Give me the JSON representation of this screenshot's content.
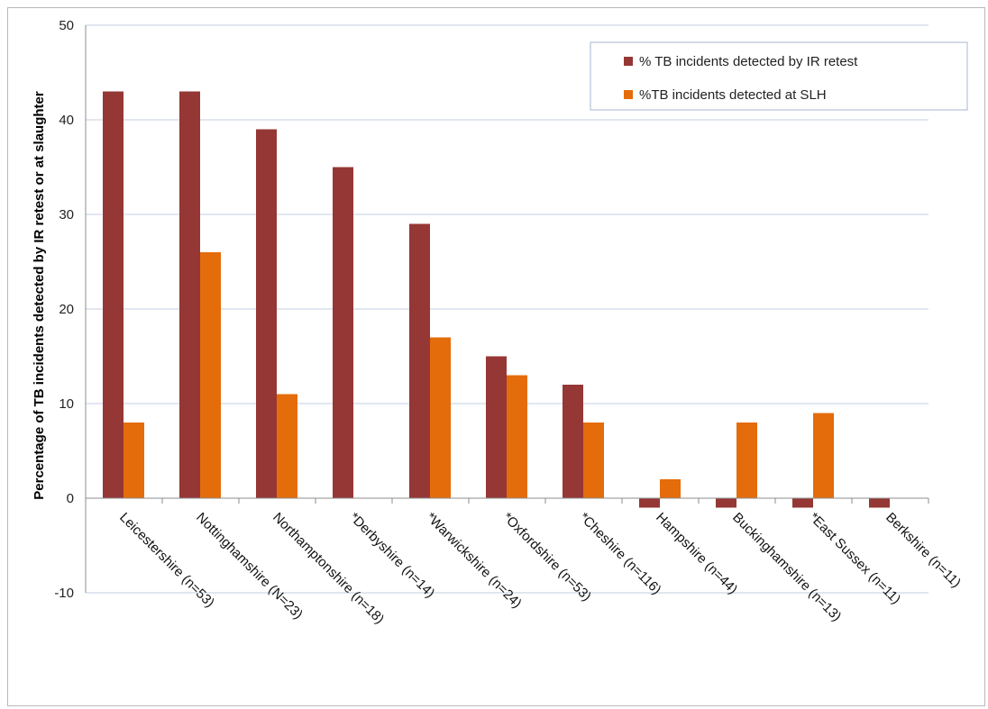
{
  "chart_data": {
    "type": "bar",
    "ylabel": "Percentage of TB incidents detected by IR retest or at slaughter",
    "xlabel": "",
    "ylim": [
      -10,
      50
    ],
    "yticks": [
      -10,
      0,
      10,
      20,
      30,
      40,
      50
    ],
    "grid": "horizontal",
    "legend_position": "top-right",
    "categories": [
      "Leicestershire (n=53)",
      "Nottinghamshire (N=23)",
      "Northamptonshire (n=18)",
      "*Derbyshire (n=14)",
      "*Warwickshire (n=24)",
      "*Oxfordshire (n=53)",
      "*Cheshire (n=116)",
      "Hampshire (n=44)",
      "Buckinghamshire (n=13)",
      "*East Sussex (n=11)",
      "Berkshire (n=11)"
    ],
    "series": [
      {
        "name": "% TB incidents detected by IR retest",
        "color": "#953735",
        "values": [
          43,
          43,
          39,
          35,
          29,
          15,
          12,
          -1,
          -1,
          -1,
          -1
        ]
      },
      {
        "name": "%TB incidents detected at SLH",
        "color": "#e46c0a",
        "values": [
          8,
          26,
          11,
          0,
          17,
          13,
          8,
          2,
          8,
          9,
          0
        ]
      }
    ]
  }
}
